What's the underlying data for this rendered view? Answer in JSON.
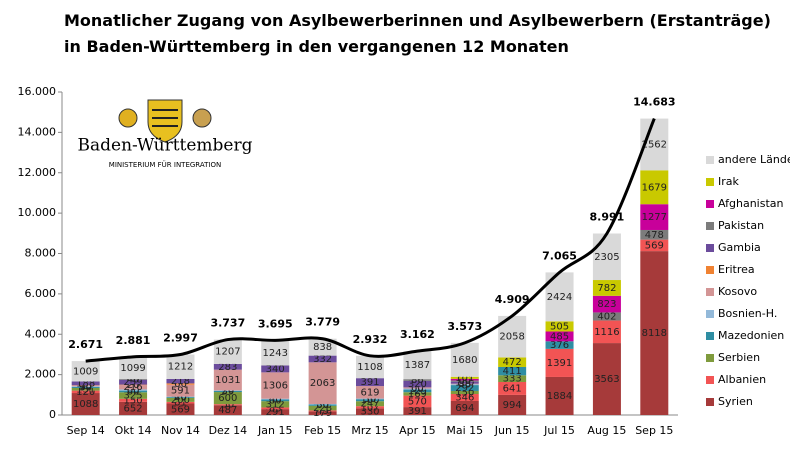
{
  "chart_data": {
    "type": "stacked_bar",
    "title": [
      "Monatlicher Zugang von Asylbewerberinnen und Asylbewerbern (Erstanträge)",
      "in Baden-Württemberg in den vergangenen 12 Monaten"
    ],
    "logo": {
      "name": "Baden-Württemberg",
      "subtitle": "MINISTERIUM FÜR INTEGRATION"
    },
    "categories": [
      "Sep 14",
      "Okt 14",
      "Nov 14",
      "Dez 14",
      "Jan 15",
      "Feb 15",
      "Mrz 15",
      "Apr 15",
      "Mai 15",
      "Jun 15",
      "Jul 15",
      "Aug 15",
      "Sep 15"
    ],
    "series": [
      {
        "name": "Syrien",
        "color": "#a63a3a",
        "values": [
          1088,
          652,
          569,
          487,
          291,
          179,
          330,
          391,
          694,
          994,
          1884,
          3563,
          8118
        ]
      },
      {
        "name": "Albanien",
        "color": "#f25454",
        "values": [
          120,
          150,
          81,
          50,
          83,
          49,
          107,
          570,
          346,
          641,
          1391,
          1116,
          569
        ]
      },
      {
        "name": "Serbien",
        "color": "#7f9b3d",
        "values": [
          131,
          325,
          200,
          600,
          312,
          228,
          247,
          169,
          150,
          333,
          0,
          0,
          0
        ]
      },
      {
        "name": "Mazedonien",
        "color": "#2f8ea3",
        "values": [
          50,
          80,
          40,
          59,
          80,
          60,
          100,
          129,
          292,
          411,
          376,
          0,
          0
        ]
      },
      {
        "name": "Bosnien-H.",
        "color": "#93b9d9",
        "values": [
          30,
          60,
          20,
          20,
          40,
          30,
          30,
          50,
          40,
          0,
          0,
          0,
          0
        ]
      },
      {
        "name": "Kosovo",
        "color": "#d39595",
        "values": [
          40,
          216,
          591,
          1031,
          1306,
          2063,
          619,
          60,
          30,
          0,
          0,
          0,
          0
        ]
      },
      {
        "name": "Eritrea",
        "color": "#f08232",
        "values": [
          15,
          20,
          66,
          0,
          0,
          0,
          0,
          0,
          0,
          0,
          0,
          0,
          0
        ]
      },
      {
        "name": "Gambia",
        "color": "#6b4c9c",
        "values": [
          188,
          239,
          218,
          283,
          340,
          332,
          391,
          320,
          100,
          0,
          0,
          0,
          0
        ]
      },
      {
        "name": "Pakistan",
        "color": "#7c7c7c",
        "values": [
          0,
          40,
          0,
          0,
          0,
          0,
          0,
          86,
          60,
          0,
          0,
          402,
          478
        ]
      },
      {
        "name": "Afghanistan",
        "color": "#c8009a",
        "values": [
          0,
          0,
          0,
          0,
          0,
          0,
          0,
          0,
          80,
          0,
          485,
          823,
          1277
        ]
      },
      {
        "name": "Irak",
        "color": "#c9c900",
        "values": [
          0,
          0,
          0,
          0,
          0,
          0,
          0,
          0,
          101,
          472,
          505,
          782,
          1679
        ]
      },
      {
        "name": "andere Länder",
        "color": "#d9d9d9",
        "values": [
          1009,
          1099,
          1212,
          1207,
          1243,
          838,
          1108,
          1387,
          1680,
          2058,
          2424,
          2305,
          2562
        ]
      }
    ],
    "totals": {
      "color": "#000000",
      "values": [
        2671,
        2881,
        2997,
        3737,
        3695,
        3779,
        2932,
        3162,
        3573,
        4909,
        7065,
        8991,
        14683
      ],
      "value_labels": [
        "2.671",
        "2.881",
        "2.997",
        "3.737",
        "3.695",
        "3.779",
        "2.932",
        "3.162",
        "3.573",
        "4.909",
        "7.065",
        "8.991",
        "14.683"
      ]
    },
    "ylim": [
      0,
      16000
    ],
    "yticks": [
      0,
      {
        "value": 2000,
        "label": "2.000"
      },
      {
        "value": 4000,
        "label": "4.000"
      },
      {
        "value": 6000,
        "label": "6.000"
      },
      {
        "value": 8000,
        "label": "8.000"
      },
      {
        "value": 10000,
        "label": "10.000"
      },
      {
        "value": 12000,
        "label": "12.000"
      },
      {
        "value": 14000,
        "label": "14.000"
      },
      {
        "value": 16000,
        "label": "16.000"
      }
    ],
    "legend": "right"
  }
}
